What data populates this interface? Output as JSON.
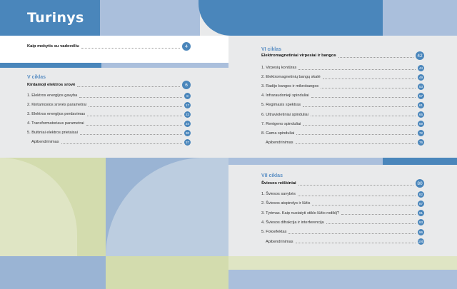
{
  "title": "Turinys",
  "colors": {
    "blue": "#4a86bb",
    "light_blue": "#aabfdc",
    "green": "#d3dcae",
    "light_green": "#dfe5c4",
    "gray": "#e9eaeb"
  },
  "intro": {
    "label": "Kaip mokytis su vadovėliu",
    "page": "4"
  },
  "cycles": [
    {
      "name": "V ciklas",
      "main": {
        "label": "Kintamoji elektros srovė",
        "page": "6"
      },
      "items": [
        {
          "label": "1.  Elektros energijos gavyba",
          "page": "8"
        },
        {
          "label": "2. Kintamosios srovės parametrai",
          "page": "17"
        },
        {
          "label": "3. Elektros energijos perdavimas",
          "page": "22"
        },
        {
          "label": "4. Transformatoriaus parametrai",
          "page": "24"
        },
        {
          "label": "5.  Buitiniai elektros prietaisai",
          "page": "30"
        },
        {
          "label": "Apibendrinimas",
          "page": "37"
        }
      ]
    },
    {
      "name": "VI ciklas",
      "main": {
        "label": "Elektromagnetiniai virpesiai ir bangos",
        "page": "42"
      },
      "items": [
        {
          "label": "1.  Virpesių kontūras",
          "page": "44"
        },
        {
          "label": "2. Elektromagnetinių bangų skalė",
          "page": "49"
        },
        {
          "label": "3. Radijo bangos ir mikrobangos",
          "page": "53"
        },
        {
          "label": "4. Infraraudonieji spinduliai",
          "page": "57"
        },
        {
          "label": "5. Regimasis spektras",
          "page": "61"
        },
        {
          "label": "6. Ultravioletiniai spinduliai",
          "page": "65"
        },
        {
          "label": "7. Rentgeno spinduliai",
          "page": "69"
        },
        {
          "label": "8. Gama spinduliai",
          "page": "72"
        },
        {
          "label": "Apibendrinimas",
          "page": "76"
        }
      ]
    },
    {
      "name": "VII ciklas",
      "main": {
        "label": "Šviesos reiškiniai",
        "page": "80"
      },
      "items": [
        {
          "label": "1.  Šviesos savybės",
          "page": "82"
        },
        {
          "label": "2. Šviesos atspindys ir lūžis",
          "page": "87"
        },
        {
          "label": "3. Tyrimas. Kaip nustatyti stiklo lūžio rodiklį?",
          "page": "91"
        },
        {
          "label": "4. Šviesos difrakcija ir interferencija",
          "page": "93"
        },
        {
          "label": "5. Fotoefektas",
          "page": "96"
        },
        {
          "label": "Apibendrinimas",
          "page": "100"
        }
      ]
    }
  ]
}
